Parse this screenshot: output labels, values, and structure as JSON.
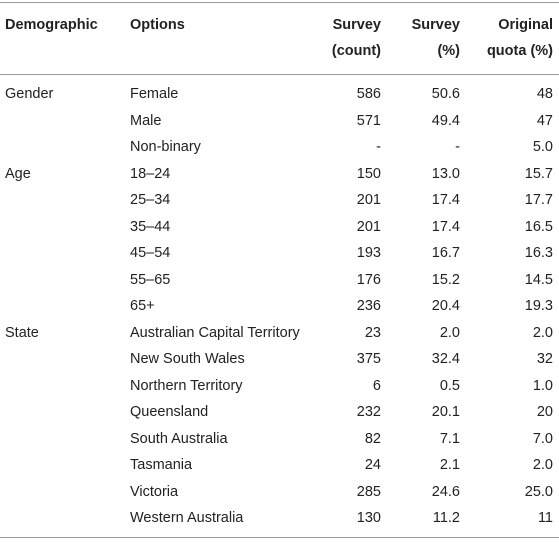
{
  "table": {
    "headers": {
      "demographic": "Demographic",
      "options": "Options",
      "survey_count": [
        "Survey",
        "(count)"
      ],
      "survey_pct": [
        "Survey",
        "(%)"
      ],
      "original_quota": [
        "Original",
        "quota (%)"
      ]
    },
    "rows": [
      {
        "group": "Gender",
        "option": "Female",
        "count": "586",
        "pct": "50.6",
        "quota": "48"
      },
      {
        "group": "",
        "option": "Male",
        "count": "571",
        "pct": "49.4",
        "quota": "47"
      },
      {
        "group": "",
        "option": "Non-binary",
        "count": "-",
        "pct": "-",
        "quota": "5.0"
      },
      {
        "group": "Age",
        "option": "18–24",
        "count": "150",
        "pct": "13.0",
        "quota": "15.7"
      },
      {
        "group": "",
        "option": "25–34",
        "count": "201",
        "pct": "17.4",
        "quota": "17.7"
      },
      {
        "group": "",
        "option": "35–44",
        "count": "201",
        "pct": "17.4",
        "quota": "16.5"
      },
      {
        "group": "",
        "option": "45–54",
        "count": "193",
        "pct": "16.7",
        "quota": "16.3"
      },
      {
        "group": "",
        "option": "55–65",
        "count": "176",
        "pct": "15.2",
        "quota": "14.5"
      },
      {
        "group": "",
        "option": "65+",
        "count": "236",
        "pct": "20.4",
        "quota": "19.3"
      },
      {
        "group": "State",
        "option": "Australian Capital Territory",
        "count": "23",
        "pct": "2.0",
        "quota": "2.0"
      },
      {
        "group": "",
        "option": "New South Wales",
        "count": "375",
        "pct": "32.4",
        "quota": "32"
      },
      {
        "group": "",
        "option": "Northern Territory",
        "count": "6",
        "pct": "0.5",
        "quota": "1.0"
      },
      {
        "group": "",
        "option": "Queensland",
        "count": "232",
        "pct": "20.1",
        "quota": "20"
      },
      {
        "group": "",
        "option": "South Australia",
        "count": "82",
        "pct": "7.1",
        "quota": "7.0"
      },
      {
        "group": "",
        "option": "Tasmania",
        "count": "24",
        "pct": "2.1",
        "quota": "2.0"
      },
      {
        "group": "",
        "option": "Victoria",
        "count": "285",
        "pct": "24.6",
        "quota": "25.0"
      },
      {
        "group": "",
        "option": "Western Australia",
        "count": "130",
        "pct": "11.2",
        "quota": "11"
      }
    ]
  }
}
